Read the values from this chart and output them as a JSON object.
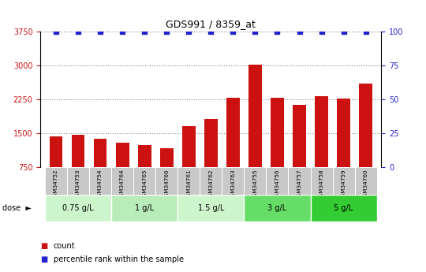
{
  "title": "GDS991 / 8359_at",
  "samples": [
    "GSM34752",
    "GSM34753",
    "GSM34754",
    "GSM34764",
    "GSM34765",
    "GSM34766",
    "GSM34761",
    "GSM34762",
    "GSM34763",
    "GSM34755",
    "GSM34756",
    "GSM34757",
    "GSM34758",
    "GSM34759",
    "GSM34760"
  ],
  "counts": [
    1430,
    1460,
    1380,
    1290,
    1240,
    1170,
    1650,
    1820,
    2290,
    3020,
    2290,
    2130,
    2310,
    2270,
    2590
  ],
  "bar_color": "#cc1111",
  "dot_color": "#2222cc",
  "ylim_left": [
    750,
    3750
  ],
  "ylim_right": [
    0,
    100
  ],
  "yticks_left": [
    750,
    1500,
    2250,
    3000,
    3750
  ],
  "yticks_right": [
    0,
    25,
    50,
    75,
    100
  ],
  "grid_color": "#888888",
  "bg_color": "#ffffff",
  "tick_area_color": "#c8c8c8",
  "dose_groups": [
    {
      "label": "0.75 g/L",
      "start": 0,
      "end": 2,
      "color": "#ccf5cc"
    },
    {
      "label": "1 g/L",
      "start": 3,
      "end": 5,
      "color": "#b8ecb8"
    },
    {
      "label": "1.5 g/L",
      "start": 6,
      "end": 8,
      "color": "#ccf5cc"
    },
    {
      "label": "3 g/L",
      "start": 9,
      "end": 11,
      "color": "#66dd66"
    },
    {
      "label": "5 g/L",
      "start": 12,
      "end": 14,
      "color": "#33cc33"
    }
  ],
  "dose_label": "dose",
  "legend_items": [
    {
      "color": "#cc1111",
      "label": "count"
    },
    {
      "color": "#2222cc",
      "label": "percentile rank within the sample"
    }
  ]
}
